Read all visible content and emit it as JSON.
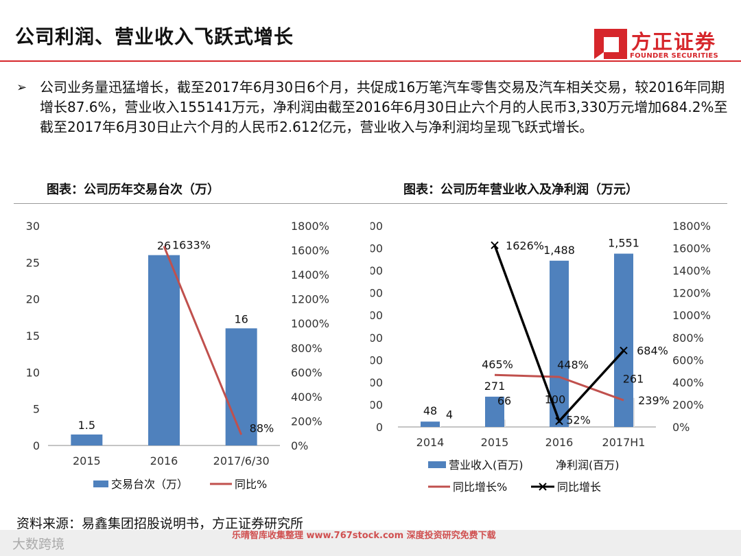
{
  "header": {
    "title": "公司利润、营业收入飞跃式增长",
    "logo_cn": "方正证券",
    "logo_en": "FOUNDER SECURITIES"
  },
  "bullet": {
    "text": "公司业务量迅猛增长，截至2017年6月30日6个月，共促成16万笔汽车零售交易及汽车相关交易，较2016年同期增长87.6%，营业收入155141万元，净利润由截至2016年6月30日止六个月的人民币3,330万元增加684.2%至截至2017年6月30日止六个月的人民币2.612亿元，营业收入与净利润均呈现飞跃式增长。"
  },
  "chart_left_title": "图表：公司历年交易台次（万）",
  "chart_right_title": "图表：公司历年营业收入及净利润（万元）",
  "source": "资料来源：易鑫集团招股说明书，方正证券研究所",
  "watermark": {
    "left": "大数跨境",
    "middle": "乐晴智库收集整理 www.767stock.com 深度投资研究免费下载"
  },
  "colors": {
    "bar": "#4f81bd",
    "line": "#c0504d",
    "line2": "#000000",
    "brand": "#d6262b"
  },
  "chart_data": [
    {
      "type": "bar",
      "title": "图表：公司历年交易台次（万）",
      "categories": [
        "2015",
        "2016",
        "2017/6/30"
      ],
      "series": [
        {
          "name": "交易台次（万）",
          "axis": "left",
          "values": [
            1.5,
            26,
            16
          ],
          "labels": [
            "1.5",
            "26",
            "16"
          ]
        },
        {
          "name": "同比%",
          "axis": "right",
          "type": "line",
          "values": [
            null,
            1633,
            88
          ],
          "labels": [
            "",
            "1633%",
            "88%"
          ]
        }
      ],
      "y_left": {
        "min": 0,
        "max": 30,
        "ticks": [
          "0",
          "5",
          "10",
          "15",
          "20",
          "25",
          "30"
        ]
      },
      "y_right": {
        "min": 0,
        "max": 1800,
        "ticks": [
          "0%",
          "200%",
          "400%",
          "600%",
          "800%",
          "1000%",
          "1200%",
          "1400%",
          "1600%",
          "1800%"
        ]
      },
      "legend": [
        "交易台次（万）",
        "同比%"
      ]
    },
    {
      "type": "bar",
      "title": "图表：公司历年营业收入及净利润（万元）",
      "categories": [
        "2014",
        "2015",
        "2016",
        "2017H1"
      ],
      "series": [
        {
          "name": "营业收入(百万)",
          "axis": "left",
          "values": [
            48,
            271,
            1488,
            1551
          ],
          "labels": [
            "48",
            "271",
            "1,488",
            "1,551"
          ]
        },
        {
          "name": "净利润(百万)",
          "axis": "left",
          "values": [
            4,
            66,
            100,
            261
          ],
          "labels": [
            "4",
            "66",
            "100",
            "261"
          ]
        },
        {
          "name": "同比增长%",
          "axis": "right",
          "type": "line",
          "values": [
            null,
            465,
            448,
            239
          ],
          "labels": [
            "",
            "465%",
            "448%",
            "239%"
          ]
        },
        {
          "name": "同比增长",
          "axis": "right",
          "type": "line",
          "values": [
            null,
            1626,
            52,
            684
          ],
          "labels": [
            "",
            "1626%",
            "52%",
            "684%"
          ]
        }
      ],
      "y_left": {
        "min": 0,
        "max": 1800,
        "ticks": [
          "0",
          "200",
          "400",
          "600",
          "800",
          "1,000",
          "1,200",
          "1,400",
          "1,600",
          "1,800"
        ]
      },
      "y_right": {
        "min": 0,
        "max": 1800,
        "ticks": [
          "0%",
          "200%",
          "400%",
          "600%",
          "800%",
          "1000%",
          "1200%",
          "1400%",
          "1600%",
          "1800%"
        ]
      },
      "legend": [
        "营业收入(百万)",
        "净利润(百万)",
        "同比增长%",
        "同比增长"
      ]
    }
  ]
}
